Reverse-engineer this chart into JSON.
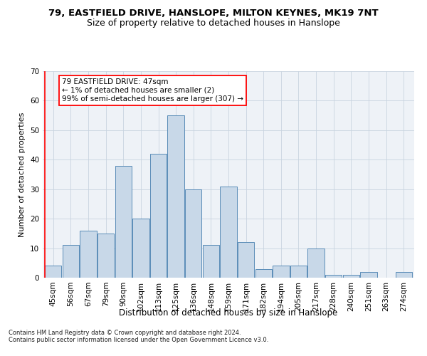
{
  "title1": "79, EASTFIELD DRIVE, HANSLOPE, MILTON KEYNES, MK19 7NT",
  "title2": "Size of property relative to detached houses in Hanslope",
  "xlabel": "Distribution of detached houses by size in Hanslope",
  "ylabel": "Number of detached properties",
  "footnote1": "Contains HM Land Registry data © Crown copyright and database right 2024.",
  "footnote2": "Contains public sector information licensed under the Open Government Licence v3.0.",
  "bar_labels": [
    "45sqm",
    "56sqm",
    "67sqm",
    "79sqm",
    "90sqm",
    "102sqm",
    "113sqm",
    "125sqm",
    "136sqm",
    "148sqm",
    "159sqm",
    "171sqm",
    "182sqm",
    "194sqm",
    "205sqm",
    "217sqm",
    "228sqm",
    "240sqm",
    "251sqm",
    "263sqm",
    "274sqm"
  ],
  "bar_values": [
    4,
    11,
    16,
    15,
    38,
    20,
    42,
    55,
    30,
    11,
    31,
    12,
    3,
    4,
    4,
    10,
    1,
    1,
    2,
    0,
    2
  ],
  "bar_color": "#c8d8e8",
  "bar_edge_color": "#5b8db8",
  "background_color": "#eef2f7",
  "annotation_text": "79 EASTFIELD DRIVE: 47sqm\n← 1% of detached houses are smaller (2)\n99% of semi-detached houses are larger (307) →",
  "annotation_box_color": "white",
  "annotation_box_edge_color": "red",
  "ylim": [
    0,
    70
  ],
  "yticks": [
    0,
    10,
    20,
    30,
    40,
    50,
    60,
    70
  ],
  "grid_color": "#c8d4e0",
  "title1_fontsize": 9.5,
  "title2_fontsize": 9,
  "xlabel_fontsize": 8.5,
  "ylabel_fontsize": 8,
  "tick_fontsize": 7.5,
  "annot_fontsize": 7.5,
  "footnote_fontsize": 6
}
